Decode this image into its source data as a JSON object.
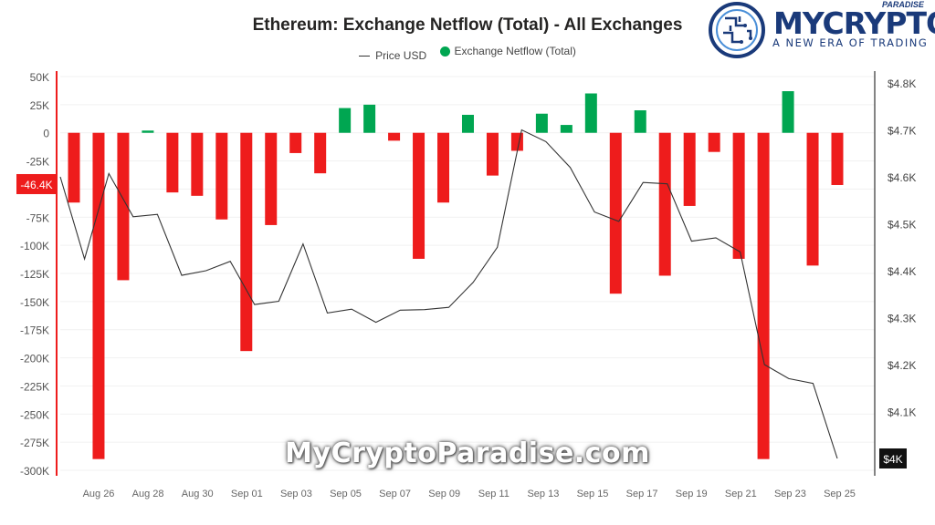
{
  "chart_data": {
    "type": "bar",
    "title": "Ethereum: Exchange Netflow (Total) - All Exchanges",
    "legend": {
      "placement": "top-center",
      "entries": [
        "Price USD",
        "Exchange Netflow (Total)"
      ]
    },
    "x_tick_labels": [
      "Aug 26",
      "Aug 28",
      "Aug 30",
      "Sep 01",
      "Sep 03",
      "Sep 05",
      "Sep 07",
      "Sep 09",
      "Sep 11",
      "Sep 13",
      "Sep 15",
      "Sep 17",
      "Sep 19",
      "Sep 21",
      "Sep 23",
      "Sep 25"
    ],
    "y_left_ticks": [
      "50K",
      "25K",
      "0",
      "-25K",
      "-50K",
      "-75K",
      "-100K",
      "-125K",
      "-150K",
      "-175K",
      "-200K",
      "-225K",
      "-250K",
      "-275K",
      "-300K"
    ],
    "y_left_range": [
      -300000,
      50000
    ],
    "y_right_ticks": [
      "$4.8K",
      "$4.7K",
      "$4.6K",
      "$4.5K",
      "$4.4K",
      "$4.3K",
      "$4.2K",
      "$4.1K",
      "$4K"
    ],
    "y_right_range": [
      3990,
      4810
    ],
    "highlight_left_label": "-46.4K",
    "highlight_right_label": "$4K",
    "positive_color": "#00a651",
    "negative_color": "#ee1c1c",
    "series": [
      {
        "name": "Exchange Netflow (Total)",
        "axis": "left",
        "values": [
          -62000,
          -290000,
          -131000,
          2000,
          -53000,
          -56000,
          -77000,
          -194000,
          -82000,
          -18000,
          -36000,
          22000,
          25000,
          -7000,
          -112000,
          -62000,
          16000,
          -38000,
          -16000,
          17000,
          7000,
          35000,
          -143000,
          20000,
          -127000,
          -65000,
          -17000,
          -112000,
          -290000,
          37000,
          -118000,
          -46400
        ]
      },
      {
        "name": "Price USD",
        "axis": "right",
        "values": [
          4600,
          4425,
          4607,
          4515,
          4520,
          4390,
          4400,
          4420,
          4328,
          4335,
          4457,
          4310,
          4318,
          4290,
          4316,
          4317,
          4322,
          4375,
          4450,
          4700,
          4675,
          4620,
          4525,
          4505,
          4588,
          4585,
          4463,
          4470,
          4440,
          4200,
          4170,
          4160,
          4000
        ]
      }
    ]
  },
  "logo": {
    "brand": "MYCRYPTO",
    "superscript": "PARADISE",
    "tagline": "A NEW ERA OF TRADING"
  },
  "watermark": "MyCryptoParadise.com"
}
